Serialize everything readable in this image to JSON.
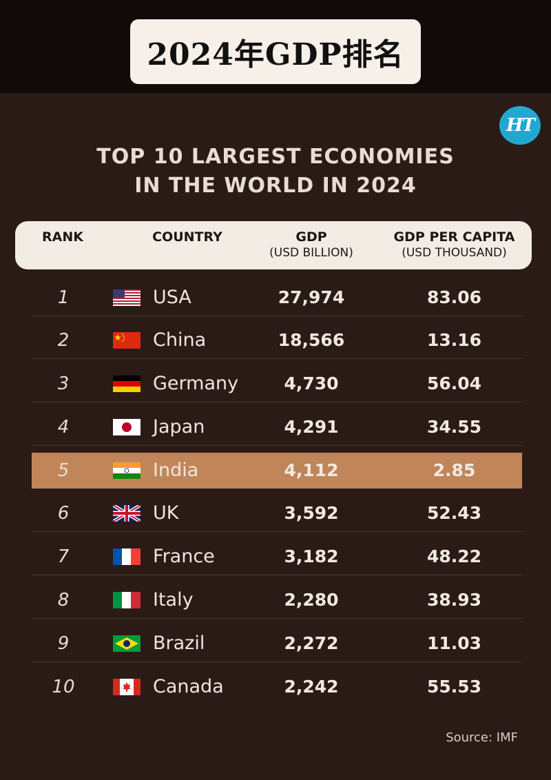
{
  "banner": {
    "title": "2024年GDP排名"
  },
  "logo": {
    "text": "HT"
  },
  "headline": {
    "line1": "TOP 10 LARGEST ECONOMIES",
    "line2": "IN THE WORLD IN 2024"
  },
  "table": {
    "headers": {
      "rank": "RANK",
      "country": "COUNTRY",
      "gdp": "GDP",
      "gdp_unit": "(USD BILLION)",
      "per_capita": "GDP PER CAPITA",
      "per_capita_unit": "(USD THOUSAND)"
    },
    "highlight_color": "#c1855a",
    "rows": [
      {
        "rank": "1",
        "country": "USA",
        "gdp": "27,974",
        "per_capita": "83.06",
        "flag": "usa-flag"
      },
      {
        "rank": "2",
        "country": "China",
        "gdp": "18,566",
        "per_capita": "13.16",
        "flag": "china-flag"
      },
      {
        "rank": "3",
        "country": "Germany",
        "gdp": "4,730",
        "per_capita": "56.04",
        "flag": "germany-flag"
      },
      {
        "rank": "4",
        "country": "Japan",
        "gdp": "4,291",
        "per_capita": "34.55",
        "flag": "japan-flag"
      },
      {
        "rank": "5",
        "country": "India",
        "gdp": "4,112",
        "per_capita": "2.85",
        "flag": "india-flag"
      },
      {
        "rank": "6",
        "country": "UK",
        "gdp": "3,592",
        "per_capita": "52.43",
        "flag": "uk-flag"
      },
      {
        "rank": "7",
        "country": "France",
        "gdp": "3,182",
        "per_capita": "48.22",
        "flag": "france-flag"
      },
      {
        "rank": "8",
        "country": "Italy",
        "gdp": "2,280",
        "per_capita": "38.93",
        "flag": "italy-flag"
      },
      {
        "rank": "9",
        "country": "Brazil",
        "gdp": "2,272",
        "per_capita": "11.03",
        "flag": "brazil-flag"
      },
      {
        "rank": "10",
        "country": "Canada",
        "gdp": "2,242",
        "per_capita": "55.53",
        "flag": "canada-flag"
      }
    ]
  },
  "source": "Source: IMF"
}
